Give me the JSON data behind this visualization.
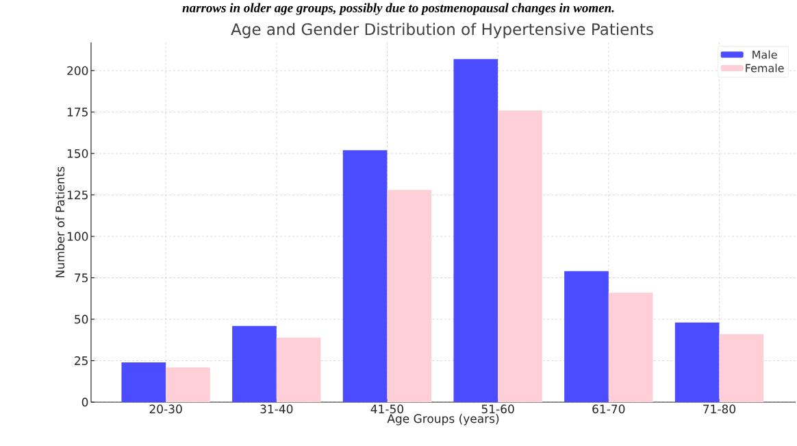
{
  "chart_data": {
    "type": "bar",
    "title": "Age and Gender Distribution of Hypertensive Patients",
    "xlabel": "Age Groups (years)",
    "ylabel": "Number of Patients",
    "annotations": [
      "narrows in older age groups, possibly due to postmenopausal changes in women."
    ],
    "categories": [
      "20-30",
      "31-40",
      "41-50",
      "51-60",
      "61-70",
      "71-80"
    ],
    "series": [
      {
        "name": "Male",
        "color": "#4b4bff",
        "values": [
          24,
          46,
          152,
          207,
          79,
          48
        ]
      },
      {
        "name": "Female",
        "color": "#ffcfd8",
        "values": [
          21,
          39,
          128,
          176,
          66,
          41
        ]
      }
    ],
    "ylim": [
      0,
      217
    ],
    "yticks": [
      0,
      25,
      50,
      75,
      100,
      125,
      150,
      175,
      200
    ],
    "grid": true,
    "legend": "top right"
  }
}
